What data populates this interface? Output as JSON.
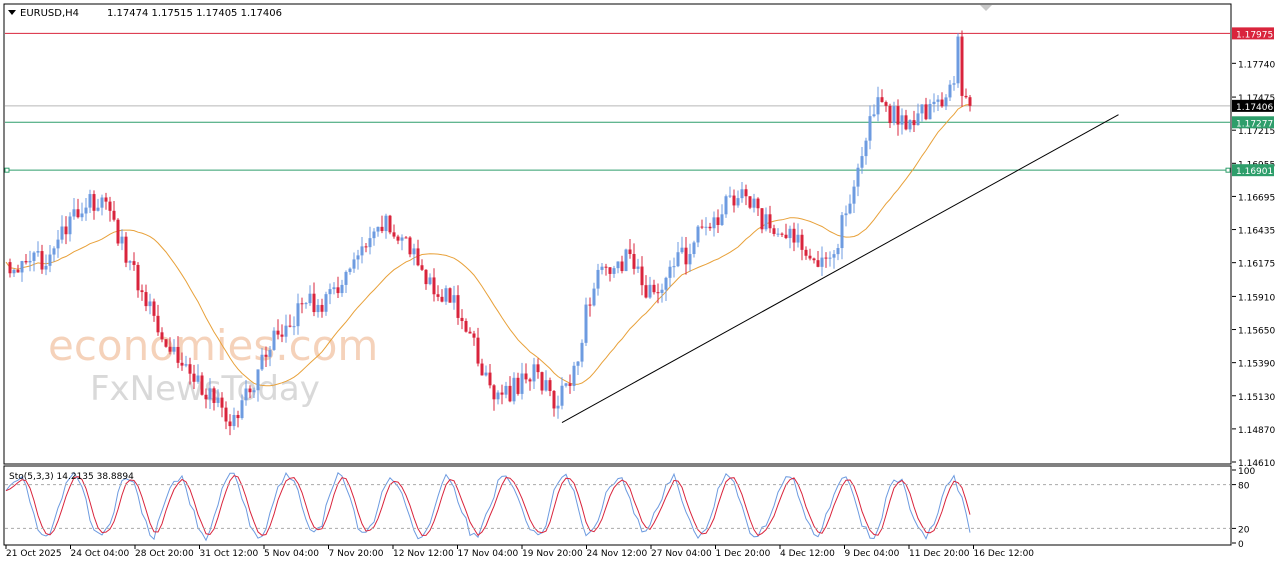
{
  "chart_data": [
    {
      "type": "candlestick",
      "title": "EURUSD,H4",
      "ohlc_header": "1.17474 1.17515 1.17405 1.17406",
      "ylim": [
        1.1461,
        1.1819
      ],
      "y_ticks": [
        "1.17740",
        "1.17475",
        "1.17215",
        "1.16955",
        "1.16695",
        "1.16435",
        "1.16175",
        "1.15910",
        "1.15650",
        "1.15390",
        "1.15130",
        "1.14870",
        "1.14610"
      ],
      "x_ticks": [
        "21 Oct 2025",
        "24 Oct 04:00",
        "28 Oct 20:00",
        "31 Oct 12:00",
        "5 Nov 04:00",
        "7 Nov 20:00",
        "12 Nov 12:00",
        "17 Nov 04:00",
        "19 Nov 20:00",
        "24 Nov 12:00",
        "27 Nov 04:00",
        "1 Dec 20:00",
        "4 Dec 12:00",
        "9 Dec 04:00",
        "11 Dec 20:00",
        "16 Dec 12:00"
      ],
      "close_path": [
        1.1615,
        1.1612,
        1.1622,
        1.1638,
        1.1661,
        1.1667,
        1.1638,
        1.1602,
        1.1572,
        1.1545,
        1.1528,
        1.1508,
        1.149,
        1.1522,
        1.1555,
        1.1572,
        1.1588,
        1.1585,
        1.161,
        1.1625,
        1.1648,
        1.1637,
        1.161,
        1.1595,
        1.158,
        1.154,
        1.151,
        1.152,
        1.1535,
        1.1505,
        1.153,
        1.16,
        1.1612,
        1.1622,
        1.159,
        1.161,
        1.1625,
        1.1645,
        1.166,
        1.1672,
        1.165,
        1.164,
        1.1635,
        1.162,
        1.1635,
        1.169,
        1.174,
        1.1732,
        1.1728,
        1.174,
        1.1755,
        1.1741
      ],
      "horizontal_levels": [
        {
          "label": "1.17975",
          "value": 1.17975,
          "color": "#d9243c"
        },
        {
          "label": "1.17406",
          "value": 1.17406,
          "color": "#000000"
        },
        {
          "label": "1.17277",
          "value": 1.17277,
          "color": "#2e9e6b"
        },
        {
          "label": "1.16901",
          "value": 1.16901,
          "color": "#2e9e6b"
        }
      ],
      "trendline": {
        "from": [
          "19 Nov 20:00",
          1.1492
        ],
        "to": [
          "16 Dec 12:00",
          1.1729
        ]
      },
      "moving_average_color": "#e8a13a",
      "up_color": "#6d9be0",
      "down_color": "#d9243c"
    },
    {
      "type": "line",
      "title": "Sto(5,3,3) 14.2135 38.8894",
      "ylim": [
        0,
        100
      ],
      "y_ticks": [
        "100",
        "80",
        "20",
        "0"
      ],
      "levels": [
        80,
        20
      ],
      "main_color": "#6d9be0",
      "signal_color": "#d9243c"
    }
  ],
  "watermark": {
    "line1": "economies.com",
    "line2": "FxNewsToday"
  }
}
